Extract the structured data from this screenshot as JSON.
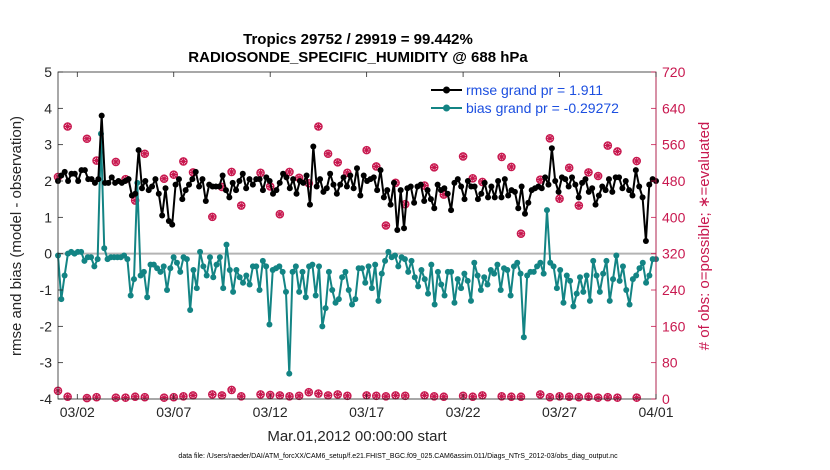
{
  "chart_data": {
    "type": "line",
    "title": "Tropics 29752 / 29919 = 99.442%",
    "subtitle": "RADIOSONDE_SPECIFIC_HUMIDITY @ 688 hPa",
    "xlabel": "Mar.01,2012 00:00:00 start",
    "ylabel_left": "rmse and bias (model - observation)",
    "ylabel_right": "# of obs: o=possible; ∗=evaluated",
    "footnote": "data file: /Users/raeder/DAI/ATM_forcXX/CAM6_setup/f.e21.FHIST_BGC.f09_025.CAM6assim.011/Diags_NTrS_2012-03/obs_diag_output.nc",
    "xlim": [
      1,
      32
    ],
    "ylim_left": [
      -4,
      5
    ],
    "ylim_right": [
      0,
      720
    ],
    "x_ticks": [
      2,
      7,
      12,
      17,
      22,
      27,
      32
    ],
    "x_tick_labels": [
      "03/02",
      "03/07",
      "03/12",
      "03/17",
      "03/22",
      "03/27",
      "04/01"
    ],
    "y_ticks_left": [
      "-4",
      "-3",
      "-2",
      "-1",
      "0",
      "1",
      "2",
      "3",
      "4",
      "5"
    ],
    "y_ticks_right": [
      "0",
      "80",
      "160",
      "240",
      "320",
      "400",
      "480",
      "560",
      "640",
      "720"
    ],
    "legend_position": "top-right",
    "series": [
      {
        "name": "rmse grand pr = 1.911",
        "axis": "left",
        "color": "#000000",
        "marker": "filled-dot",
        "values": [
          2.0,
          2.15,
          2.25,
          2.0,
          2.2,
          2.2,
          2.0,
          2.3,
          2.3,
          2.05,
          2.05,
          1.95,
          2.05,
          3.8,
          1.95,
          1.95,
          2.1,
          1.95,
          2.0,
          1.95,
          2.0,
          2.05,
          1.6,
          1.65,
          2.85,
          1.8,
          2.0,
          1.75,
          1.85,
          2.05,
          1.65,
          1.05,
          1.8,
          0.9,
          0.8,
          1.9,
          2.05,
          1.5,
          1.75,
          1.9,
          2.05,
          2.25,
          1.85,
          2.05,
          1.45,
          1.9,
          1.85,
          1.85,
          1.85,
          2.15,
          1.75,
          1.55,
          1.95,
          1.75,
          2.0,
          2.2,
          1.8,
          2.05,
          1.9,
          2.05,
          2.05,
          1.75,
          2.1,
          2.0,
          1.65,
          1.75,
          1.95,
          2.2,
          2.1,
          1.8,
          2.05,
          1.65,
          2.0,
          1.95,
          2.15,
          1.35,
          2.95,
          1.85,
          2.05,
          1.7,
          1.8,
          2.2,
          1.9,
          1.65,
          1.9,
          2.1,
          1.85,
          2.15,
          1.8,
          2.35,
          1.6,
          2.15,
          2.0,
          2.05,
          2.1,
          1.75,
          2.3,
          1.55,
          1.75,
          1.35,
          1.95,
          0.65,
          1.75,
          0.7,
          1.8,
          1.85,
          1.4,
          1.85,
          1.9,
          1.45,
          1.75,
          1.5,
          1.25,
          1.9,
          1.75,
          1.8,
          1.65,
          1.2,
          1.95,
          2.05,
          1.85,
          1.5,
          2.0,
          1.85,
          1.85,
          1.5,
          1.65,
          1.95,
          1.55,
          1.85,
          1.55,
          2.0,
          1.55,
          2.05,
          1.6,
          1.75,
          1.7,
          1.25,
          1.85,
          1.1,
          1.4,
          1.75,
          1.8,
          1.85,
          1.8,
          2.1,
          1.9,
          2.9,
          2.0,
          1.7,
          2.1,
          2.05,
          1.85,
          2.1,
          1.9,
          1.55,
          1.95,
          2.05,
          1.7,
          1.8,
          1.35,
          1.6,
          1.85,
          1.75,
          2.05,
          1.7,
          2.1,
          2.1,
          1.8,
          2.0,
          1.75,
          1.6,
          2.3,
          1.85,
          1.55,
          0.35,
          1.9,
          2.05,
          2.0
        ]
      },
      {
        "name": "bias grand pr = -0.29272",
        "axis": "left",
        "color": "#138484",
        "marker": "filled-dot",
        "values": [
          -0.05,
          -1.25,
          -0.6,
          0.0,
          0.05,
          0.0,
          0.05,
          0.05,
          -0.2,
          -0.1,
          -0.1,
          -0.35,
          -0.15,
          3.3,
          0.15,
          -0.15,
          -0.1,
          -0.1,
          -0.1,
          -0.1,
          -0.05,
          -0.15,
          -1.15,
          -0.7,
          1.95,
          -0.6,
          -0.5,
          -1.2,
          -0.3,
          -0.3,
          -0.4,
          -0.5,
          -0.35,
          -1.0,
          -0.4,
          -0.1,
          -0.25,
          -0.5,
          -0.1,
          -0.15,
          -1.55,
          -0.45,
          -0.95,
          0.05,
          -0.35,
          -0.6,
          -0.1,
          -0.65,
          -0.3,
          -0.1,
          -0.95,
          0.25,
          -0.45,
          -1.05,
          -0.45,
          -0.65,
          -0.8,
          -0.6,
          -0.85,
          -0.35,
          -0.35,
          -1.0,
          -0.2,
          -0.35,
          -1.95,
          -0.45,
          -0.4,
          -0.35,
          -0.5,
          -1.05,
          -3.3,
          -0.5,
          -0.35,
          -1.05,
          -0.5,
          -1.2,
          -0.35,
          -0.3,
          -1.15,
          -0.35,
          -2.0,
          -1.5,
          -0.5,
          -1.0,
          -1.35,
          -1.25,
          -0.65,
          -0.5,
          -1.0,
          -1.4,
          -1.25,
          -0.4,
          -0.4,
          -0.8,
          -0.35,
          -0.95,
          -0.3,
          -1.3,
          -0.55,
          -0.2,
          0.05,
          -0.1,
          -0.05,
          -0.35,
          -0.1,
          -0.15,
          -0.5,
          -0.2,
          -0.65,
          -0.9,
          -0.45,
          -0.7,
          -1.1,
          -0.3,
          -1.4,
          -0.5,
          -0.85,
          -1.15,
          -0.5,
          -0.5,
          -1.35,
          -0.7,
          -0.95,
          -0.55,
          -0.75,
          -1.3,
          -0.25,
          -0.6,
          -1.0,
          -0.65,
          -0.85,
          -0.45,
          -0.55,
          -0.3,
          -1.0,
          -0.4,
          -0.45,
          -1.15,
          -0.35,
          -0.25,
          -0.55,
          -2.3,
          -0.6,
          -0.5,
          -0.5,
          -0.35,
          -0.25,
          -0.55,
          1.2,
          -0.25,
          -0.35,
          -0.95,
          -0.45,
          -1.35,
          -0.6,
          -0.75,
          -1.45,
          -1.1,
          -0.65,
          -1.05,
          -0.6,
          -1.3,
          -0.2,
          -0.6,
          -1.05,
          -0.55,
          -0.2,
          -1.3,
          -0.7,
          -0.05,
          -0.75,
          -0.35,
          -1.0,
          -1.4,
          -0.7,
          -0.6,
          -0.4,
          -0.25,
          -0.8,
          -0.6,
          -0.15,
          -0.15
        ]
      },
      {
        "name": "possible obs (o)",
        "axis": "right",
        "color": "#c8184f",
        "marker": "circle",
        "groups": [
          {
            "x": 1.0,
            "values": [
              489,
              18
            ]
          },
          {
            "x": 1.5,
            "values": [
              600,
              5
            ]
          },
          {
            "x": 2.5,
            "values": [
              573,
              2
            ]
          },
          {
            "x": 3.0,
            "values": [
              525,
              4
            ]
          },
          {
            "x": 4.0,
            "values": [
              522,
              3
            ]
          },
          {
            "x": 4.5,
            "values": [
              484,
              3
            ]
          },
          {
            "x": 5.0,
            "values": [
              437,
              5
            ]
          },
          {
            "x": 5.5,
            "values": [
              540,
              4
            ]
          },
          {
            "x": 6.5,
            "values": [
              485,
              3
            ]
          },
          {
            "x": 7.0,
            "values": [
              494,
              4
            ]
          },
          {
            "x": 7.5,
            "values": [
              523,
              6
            ]
          },
          {
            "x": 8.0,
            "values": [
              499,
              8
            ]
          },
          {
            "x": 9.0,
            "values": [
              401,
              10
            ]
          },
          {
            "x": 9.5,
            "values": [
              467,
              8
            ]
          },
          {
            "x": 10.0,
            "values": [
              500,
              20
            ]
          },
          {
            "x": 10.5,
            "values": [
              426,
              6
            ]
          },
          {
            "x": 11.5,
            "values": [
              498,
              10
            ]
          },
          {
            "x": 12.0,
            "values": [
              468,
              9
            ]
          },
          {
            "x": 12.5,
            "values": [
              407,
              8
            ]
          },
          {
            "x": 13.0,
            "values": [
              500,
              6
            ]
          },
          {
            "x": 13.5,
            "values": [
              487,
              7
            ]
          },
          {
            "x": 14.0,
            "values": [
              475,
              15
            ]
          },
          {
            "x": 14.5,
            "values": [
              600,
              12
            ]
          },
          {
            "x": 15.0,
            "values": [
              540,
              8
            ]
          },
          {
            "x": 15.5,
            "values": [
              521,
              10
            ]
          },
          {
            "x": 16.0,
            "values": [
              498,
              7
            ]
          },
          {
            "x": 17.0,
            "values": [
              548,
              8
            ]
          },
          {
            "x": 17.5,
            "values": [
              512,
              7
            ]
          },
          {
            "x": 18.0,
            "values": [
              382,
              6
            ]
          },
          {
            "x": 18.5,
            "values": [
              476,
              8
            ]
          },
          {
            "x": 19.0,
            "values": [
              429,
              7
            ]
          },
          {
            "x": 20.0,
            "values": [
              470,
              8
            ]
          },
          {
            "x": 20.5,
            "values": [
              510,
              6
            ]
          },
          {
            "x": 21.0,
            "values": [
              450,
              5
            ]
          },
          {
            "x": 22.0,
            "values": [
              534,
              7
            ]
          },
          {
            "x": 22.5,
            "values": [
              486,
              5
            ]
          },
          {
            "x": 23.0,
            "values": [
              478,
              8
            ]
          },
          {
            "x": 24.0,
            "values": [
              533,
              6
            ]
          },
          {
            "x": 24.5,
            "values": [
              511,
              5
            ]
          },
          {
            "x": 25.0,
            "values": [
              364,
              5
            ]
          },
          {
            "x": 26.0,
            "values": [
              483,
              10
            ]
          },
          {
            "x": 26.5,
            "values": [
              574,
              4
            ]
          },
          {
            "x": 27.0,
            "values": [
              441,
              6
            ]
          },
          {
            "x": 27.5,
            "values": [
              509,
              5
            ]
          },
          {
            "x": 28.0,
            "values": [
              426,
              4
            ]
          },
          {
            "x": 28.5,
            "values": [
              499,
              5
            ]
          },
          {
            "x": 29.0,
            "values": [
              491,
              3
            ]
          },
          {
            "x": 29.5,
            "values": [
              558,
              4
            ]
          },
          {
            "x": 30.0,
            "values": [
              545,
              3
            ]
          },
          {
            "x": 31.0,
            "values": [
              524,
              3
            ]
          }
        ]
      }
    ]
  }
}
